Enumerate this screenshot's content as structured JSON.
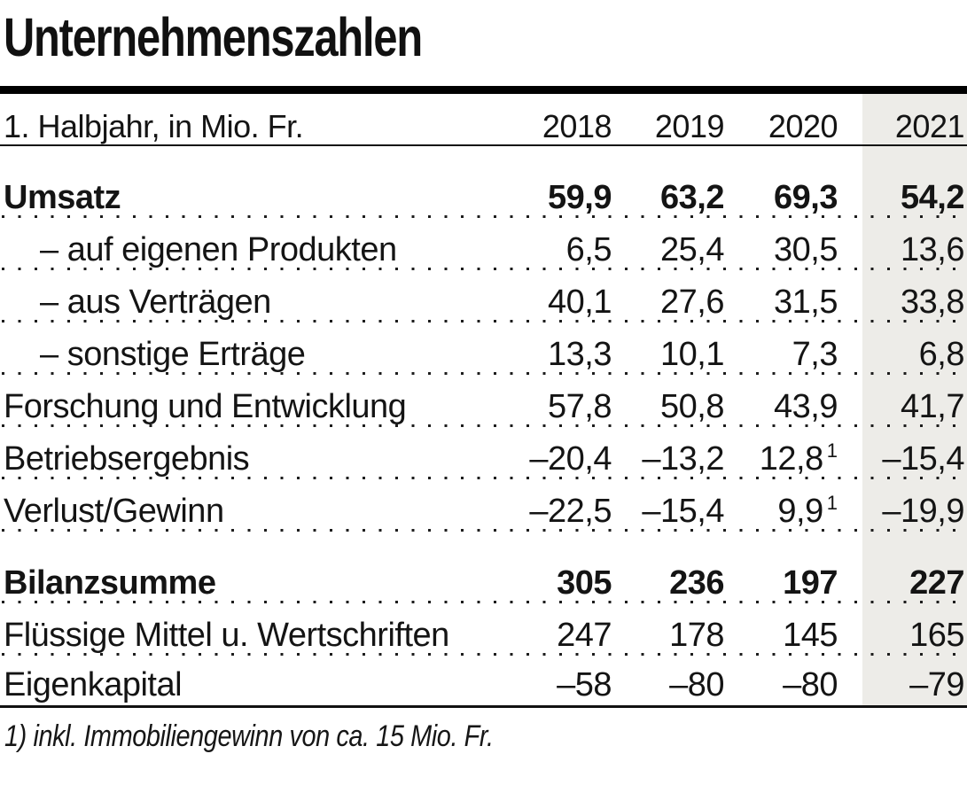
{
  "title": "Unternehmenszahlen",
  "table": {
    "unit_label": "1. Halbjahr, in Mio. Fr.",
    "years": [
      "2018",
      "2019",
      "2020",
      "2021"
    ],
    "rows": [
      {
        "label": "Umsatz",
        "bold": true,
        "indent": false,
        "section_start": true,
        "values": [
          "59,9",
          "63,2",
          "69,3",
          "54,2"
        ],
        "sup": [
          "",
          "",
          "",
          ""
        ]
      },
      {
        "label": "– auf eigenen Produkten",
        "bold": false,
        "indent": true,
        "section_start": false,
        "values": [
          "6,5",
          "25,4",
          "30,5",
          "13,6"
        ],
        "sup": [
          "",
          "",
          "",
          ""
        ]
      },
      {
        "label": "– aus Verträgen",
        "bold": false,
        "indent": true,
        "section_start": false,
        "values": [
          "40,1",
          "27,6",
          "31,5",
          "33,8"
        ],
        "sup": [
          "",
          "",
          "",
          ""
        ]
      },
      {
        "label": "– sonstige Erträge",
        "bold": false,
        "indent": true,
        "section_start": false,
        "values": [
          "13,3",
          "10,1",
          "7,3",
          "6,8"
        ],
        "sup": [
          "",
          "",
          "",
          ""
        ]
      },
      {
        "label": "Forschung und Entwicklung",
        "bold": false,
        "indent": false,
        "section_start": false,
        "values": [
          "57,8",
          "50,8",
          "43,9",
          "41,7"
        ],
        "sup": [
          "",
          "",
          "",
          ""
        ]
      },
      {
        "label": "Betriebsergebnis",
        "bold": false,
        "indent": false,
        "section_start": false,
        "values": [
          "–20,4",
          "–13,2",
          "12,8",
          "–15,4"
        ],
        "sup": [
          "",
          "",
          "1",
          ""
        ]
      },
      {
        "label": "Verlust/Gewinn",
        "bold": false,
        "indent": false,
        "section_start": false,
        "values": [
          "–22,5",
          "–15,4",
          "9,9",
          "–19,9"
        ],
        "sup": [
          "",
          "",
          "1",
          ""
        ]
      },
      {
        "label": "Bilanzsumme",
        "bold": true,
        "indent": false,
        "section_start": true,
        "values": [
          "305",
          "236",
          "197",
          "227"
        ],
        "sup": [
          "",
          "",
          "",
          ""
        ]
      },
      {
        "label": "Flüssige Mittel u. Wertschriften",
        "bold": false,
        "indent": false,
        "section_start": false,
        "values": [
          "247",
          "178",
          "145",
          "165"
        ],
        "sup": [
          "",
          "",
          "",
          ""
        ]
      },
      {
        "label": "Eigenkapital",
        "bold": false,
        "indent": false,
        "section_start": false,
        "last": true,
        "values": [
          "–58",
          "–80",
          "–80",
          "–79"
        ],
        "sup": [
          "",
          "",
          "",
          ""
        ]
      }
    ]
  },
  "footnote": "1) inkl. Immobiliengewinn von ca. 15 Mio. Fr.",
  "colors": {
    "highlight_column": "#edece8",
    "text": "#141414",
    "rule": "#000000"
  },
  "chart_data": {
    "type": "table",
    "title": "Unternehmenszahlen",
    "subtitle": "1. Halbjahr, in Mio. Fr.",
    "columns": [
      "2018",
      "2019",
      "2020",
      "2021"
    ],
    "highlighted_column": "2021",
    "series": [
      {
        "name": "Umsatz",
        "values": [
          59.9,
          63.2,
          69.3,
          54.2
        ],
        "emphasis": "bold"
      },
      {
        "name": "auf eigenen Produkten",
        "values": [
          6.5,
          25.4,
          30.5,
          13.6
        ],
        "group": "Umsatz"
      },
      {
        "name": "aus Verträgen",
        "values": [
          40.1,
          27.6,
          31.5,
          33.8
        ],
        "group": "Umsatz"
      },
      {
        "name": "sonstige Erträge",
        "values": [
          13.3,
          10.1,
          7.3,
          6.8
        ],
        "group": "Umsatz"
      },
      {
        "name": "Forschung und Entwicklung",
        "values": [
          57.8,
          50.8,
          43.9,
          41.7
        ]
      },
      {
        "name": "Betriebsergebnis",
        "values": [
          -20.4,
          -13.2,
          12.8,
          -15.4
        ],
        "footnote_marks": {
          "2020": "1"
        }
      },
      {
        "name": "Verlust/Gewinn",
        "values": [
          -22.5,
          -15.4,
          9.9,
          -19.9
        ],
        "footnote_marks": {
          "2020": "1"
        }
      },
      {
        "name": "Bilanzsumme",
        "values": [
          305,
          236,
          197,
          227
        ],
        "emphasis": "bold"
      },
      {
        "name": "Flüssige Mittel u. Wertschriften",
        "values": [
          247,
          178,
          145,
          165
        ]
      },
      {
        "name": "Eigenkapital",
        "values": [
          -58,
          -80,
          -80,
          -79
        ]
      }
    ],
    "footnotes": [
      "1) inkl. Immobiliengewinn von ca. 15 Mio. Fr."
    ]
  }
}
